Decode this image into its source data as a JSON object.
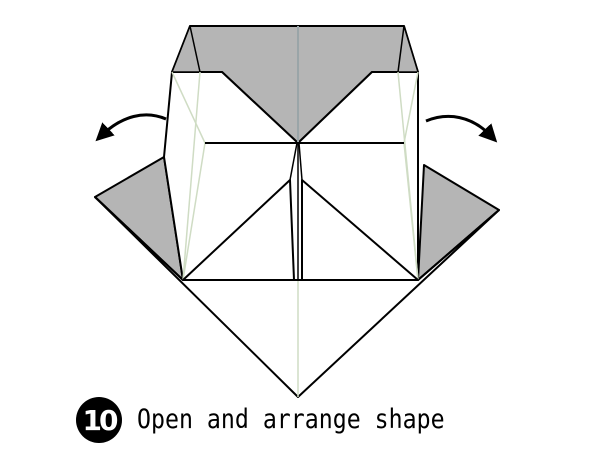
{
  "step": {
    "number": "10",
    "caption": "Open and arrange shape"
  },
  "colors": {
    "paper_front": "#ffffff",
    "paper_back": "#b5b5b5",
    "line": "#000000",
    "crease": "#cfdcc4",
    "center_crease": "#9aa5a8"
  },
  "arrows": {
    "left": "curved-arrow-left",
    "right": "curved-arrow-right"
  }
}
